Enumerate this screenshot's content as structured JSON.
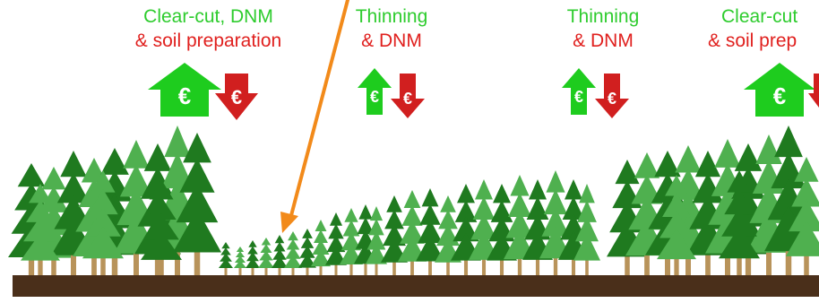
{
  "labels": [
    {
      "line1": "Clear-cut, DNM",
      "line2": "& soil preparation"
    },
    {
      "line1": "Thinning",
      "line2": "& DNM"
    },
    {
      "line1": "Thinning",
      "line2": "& DNM"
    },
    {
      "line1": "Clear-cut",
      "line2": "& soil prep"
    }
  ],
  "icons": {
    "currency": "€",
    "income": "euro-up-arrow-icon",
    "cost": "euro-down-arrow-icon"
  },
  "colors": {
    "income": "#1ecc1e",
    "cost": "#d11f1f",
    "ground": "#4a2f1a",
    "trunk": "#b8935a",
    "tree_dark": "#1f7a1f",
    "tree_light": "#4fb04f",
    "arrow": "#f28a1a"
  }
}
